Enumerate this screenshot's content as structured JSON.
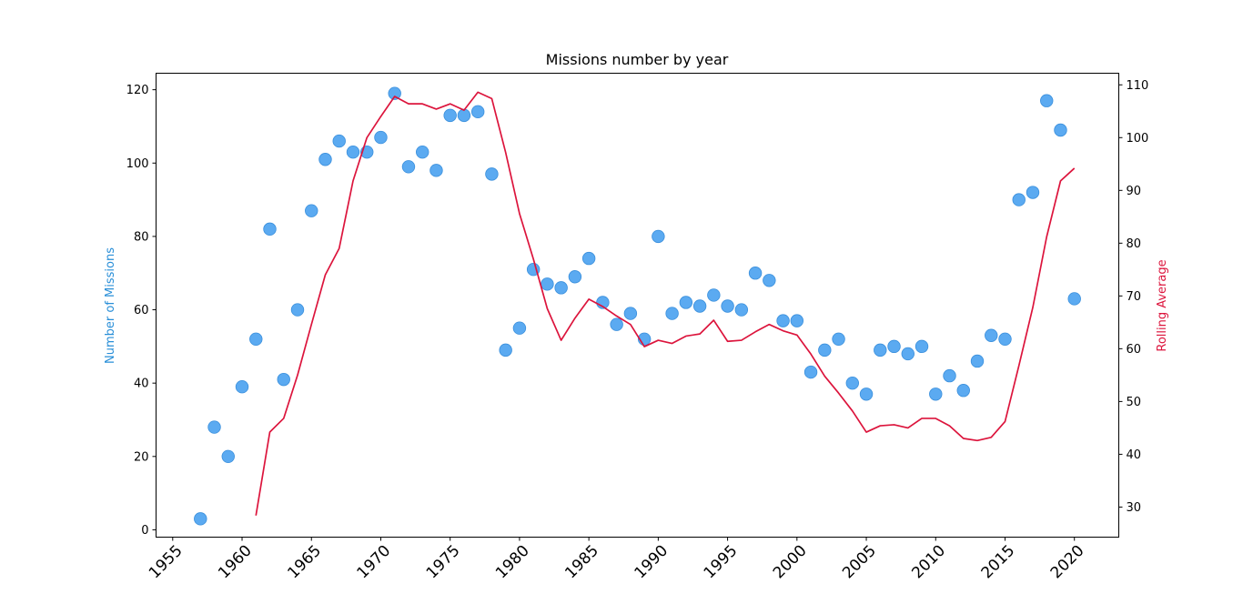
{
  "chart_data": {
    "type": "scatter",
    "title": "Missions number by year",
    "xlabel": "",
    "ylabel": "Number of Missions",
    "y2label": "Rolling Average",
    "xlim": [
      1953.8,
      2023.2
    ],
    "ylim": [
      -2,
      124.5
    ],
    "y2lim": [
      24.3,
      112.2
    ],
    "x_ticks": [
      1955,
      1960,
      1965,
      1970,
      1975,
      1980,
      1985,
      1990,
      1995,
      2000,
      2005,
      2010,
      2015,
      2020
    ],
    "y_ticks": [
      0,
      20,
      40,
      60,
      80,
      100,
      120
    ],
    "y2_ticks": [
      30,
      40,
      50,
      60,
      70,
      80,
      90,
      100,
      110
    ],
    "grid": false,
    "colors": {
      "scatter": "#4da3f0",
      "scatter_edge": "#3a8fdc",
      "line": "#dc143c",
      "ylabel": "#2a8fd8",
      "y2label": "#dc143c"
    },
    "series": [
      {
        "name": "Number of Missions",
        "kind": "scatter",
        "axis": "left",
        "x": [
          1957,
          1958,
          1959,
          1960,
          1961,
          1962,
          1963,
          1964,
          1965,
          1966,
          1967,
          1968,
          1969,
          1970,
          1971,
          1972,
          1973,
          1974,
          1975,
          1976,
          1977,
          1978,
          1979,
          1980,
          1981,
          1982,
          1983,
          1984,
          1985,
          1986,
          1987,
          1988,
          1989,
          1990,
          1991,
          1992,
          1993,
          1994,
          1995,
          1996,
          1997,
          1998,
          1999,
          2000,
          2001,
          2002,
          2003,
          2004,
          2005,
          2006,
          2007,
          2008,
          2009,
          2010,
          2011,
          2012,
          2013,
          2014,
          2015,
          2016,
          2017,
          2018,
          2019,
          2020
        ],
        "y": [
          3,
          28,
          20,
          39,
          52,
          82,
          41,
          60,
          87,
          101,
          106,
          103,
          103,
          107,
          119,
          99,
          103,
          98,
          113,
          113,
          114,
          97,
          49,
          55,
          71,
          67,
          66,
          69,
          74,
          62,
          56,
          59,
          52,
          80,
          59,
          62,
          61,
          64,
          61,
          60,
          70,
          68,
          57,
          57,
          43,
          49,
          52,
          40,
          37,
          49,
          50,
          48,
          50,
          37,
          42,
          38,
          46,
          53,
          52,
          90,
          92,
          117,
          109,
          63
        ]
      },
      {
        "name": "Rolling Average",
        "kind": "line",
        "axis": "right",
        "x": [
          1961,
          1962,
          1963,
          1964,
          1965,
          1966,
          1967,
          1968,
          1969,
          1970,
          1971,
          1972,
          1973,
          1974,
          1975,
          1976,
          1977,
          1978,
          1979,
          1980,
          1981,
          1982,
          1983,
          1984,
          1985,
          1986,
          1987,
          1988,
          1989,
          1990,
          1991,
          1992,
          1993,
          1994,
          1995,
          1996,
          1997,
          1998,
          1999,
          2000,
          2001,
          2002,
          2003,
          2004,
          2005,
          2006,
          2007,
          2008,
          2009,
          2010,
          2011,
          2012,
          2013,
          2014,
          2015,
          2016,
          2017,
          2018,
          2019,
          2020
        ],
        "y": [
          28.4,
          44.2,
          46.8,
          55.0,
          64.6,
          74.0,
          79.0,
          91.8,
          100.0,
          104.0,
          107.8,
          106.4,
          106.4,
          105.4,
          106.4,
          105.2,
          108.6,
          107.4,
          97.2,
          85.6,
          77.0,
          67.6,
          61.6,
          65.8,
          69.4,
          68.0,
          66.2,
          64.6,
          60.4,
          61.6,
          61.0,
          62.4,
          62.8,
          65.4,
          61.4,
          61.6,
          63.2,
          64.6,
          63.4,
          62.6,
          59.0,
          54.8,
          51.6,
          48.2,
          44.2,
          45.4,
          45.6,
          45.0,
          46.8,
          46.8,
          45.4,
          43.0,
          42.6,
          43.2,
          46.2,
          56.8,
          67.8,
          81.2,
          91.8,
          94.2
        ]
      }
    ]
  }
}
